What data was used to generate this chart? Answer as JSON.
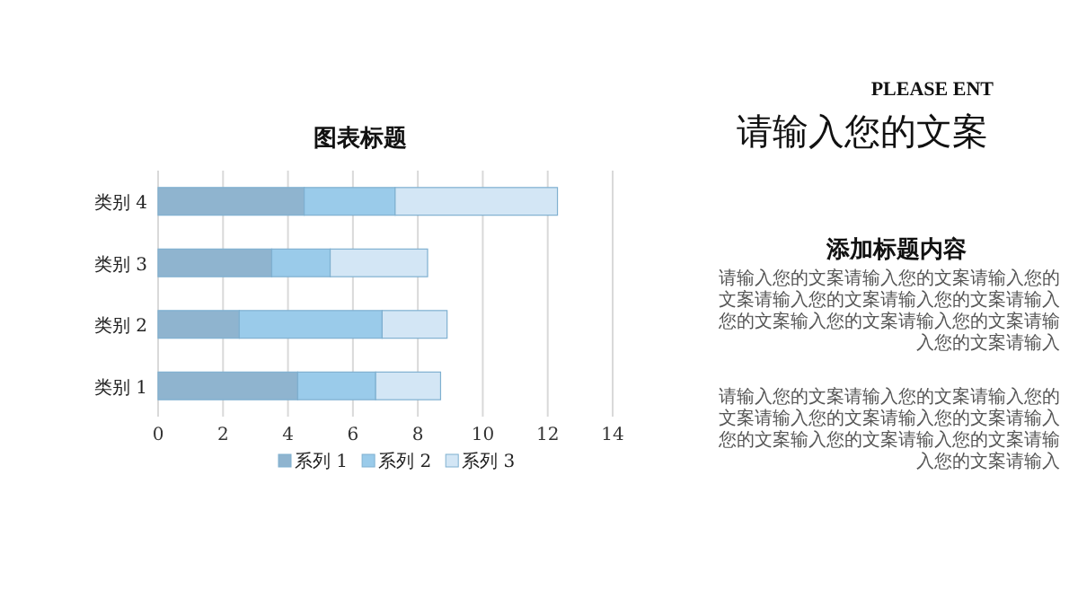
{
  "chart_data": {
    "type": "bar",
    "orientation": "horizontal",
    "stacked": true,
    "title": "图表标题",
    "categories": [
      "类别 4",
      "类别 3",
      "类别 2",
      "类别 1"
    ],
    "series": [
      {
        "name": "系列 1",
        "color": "#8fb4cf",
        "values": [
          4.5,
          3.5,
          2.5,
          4.3
        ]
      },
      {
        "name": "系列 2",
        "color": "#9acbea",
        "values": [
          2.8,
          1.8,
          4.4,
          2.4
        ]
      },
      {
        "name": "系列 3",
        "color": "#d3e6f5",
        "values": [
          5,
          3,
          2,
          2
        ]
      }
    ],
    "xlim": [
      0,
      14
    ],
    "xticks": [
      0,
      2,
      4,
      6,
      8,
      10,
      12,
      14
    ],
    "grid": "x",
    "legend": "bottom",
    "annotations": [
      "PLEASE ENT",
      "请输入您的文案",
      "添加标题内容",
      "请输入您的文案请输入您的文案请输入您的文案请输入您的文案请输入您的文案请输入您的文案输入您的文案请输入您的文案请输入您的文案请输入",
      "请输入您的文案请输入您的文案请输入您的文案请输入您的文案请输入您的文案请输入您的文案输入您的文案请输入您的文案请输入您的文案请输入"
    ]
  }
}
